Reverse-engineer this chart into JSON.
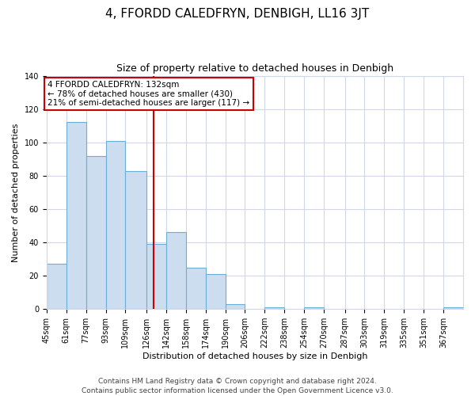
{
  "title": "4, FFORDD CALEDFRYN, DENBIGH, LL16 3JT",
  "subtitle": "Size of property relative to detached houses in Denbigh",
  "xlabel": "Distribution of detached houses by size in Denbigh",
  "ylabel": "Number of detached properties",
  "bin_labels": [
    "45sqm",
    "61sqm",
    "77sqm",
    "93sqm",
    "109sqm",
    "126sqm",
    "142sqm",
    "158sqm",
    "174sqm",
    "190sqm",
    "206sqm",
    "222sqm",
    "238sqm",
    "254sqm",
    "270sqm",
    "287sqm",
    "303sqm",
    "319sqm",
    "335sqm",
    "351sqm",
    "367sqm"
  ],
  "bin_edges": [
    45,
    61,
    77,
    93,
    109,
    126,
    142,
    158,
    174,
    190,
    206,
    222,
    238,
    254,
    270,
    287,
    303,
    319,
    335,
    351,
    367,
    383
  ],
  "bar_heights": [
    27,
    112,
    92,
    101,
    83,
    39,
    46,
    25,
    21,
    3,
    0,
    1,
    0,
    1,
    0,
    0,
    0,
    0,
    0,
    0,
    1
  ],
  "bar_color": "#ccddf0",
  "bar_edge_color": "#6baed6",
  "property_size": 132,
  "vline_color": "#cc0000",
  "annotation_line1": "4 FFORDD CALEDFRYN: 132sqm",
  "annotation_line2": "← 78% of detached houses are smaller (430)",
  "annotation_line3": "21% of semi-detached houses are larger (117) →",
  "annotation_box_edge": "#cc0000",
  "ylim": [
    0,
    140
  ],
  "yticks": [
    0,
    20,
    40,
    60,
    80,
    100,
    120,
    140
  ],
  "footer_text": "Contains HM Land Registry data © Crown copyright and database right 2024.\nContains public sector information licensed under the Open Government Licence v3.0.",
  "bg_color": "#ffffff",
  "grid_color": "#d0d8e8",
  "title_fontsize": 11,
  "subtitle_fontsize": 9,
  "axis_label_fontsize": 8,
  "tick_fontsize": 7,
  "annotation_fontsize": 7.5,
  "footer_fontsize": 6.5
}
